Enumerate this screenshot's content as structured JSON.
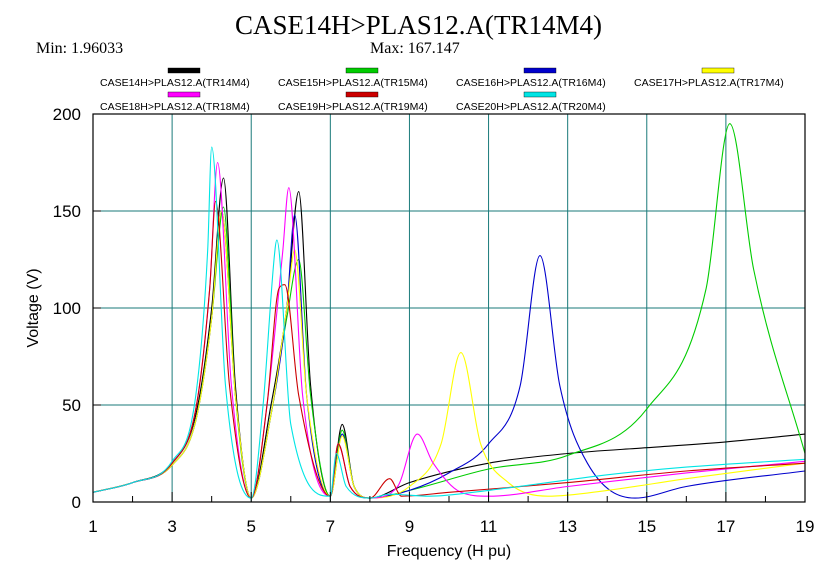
{
  "header": {
    "title": "CASE14H>PLAS12.A(TR14M4)",
    "min_text": "Min:  1.96033",
    "max_text": "Max:  167.147"
  },
  "chart_data": {
    "type": "line",
    "title": "CASE14H>PLAS12.A(TR14M4)",
    "xlabel": "Frequency (H pu)",
    "ylabel": "Voltage (V)",
    "xlim": [
      1,
      19
    ],
    "ylim": [
      0,
      200
    ],
    "xticks": [
      1,
      3,
      5,
      7,
      9,
      11,
      13,
      15,
      17,
      19
    ],
    "yticks": [
      0,
      50,
      100,
      150,
      200
    ],
    "grid": true,
    "legend_position": "top",
    "series": [
      {
        "name": "CASE14H>PLAS12.A(TR14M4)",
        "color": "#000000",
        "points": [
          [
            1,
            5
          ],
          [
            2,
            10
          ],
          [
            3,
            20
          ],
          [
            3.6,
            45
          ],
          [
            4.0,
            100
          ],
          [
            4.3,
            167
          ],
          [
            4.6,
            60
          ],
          [
            5,
            2
          ],
          [
            5.5,
            50
          ],
          [
            5.9,
            100
          ],
          [
            6.2,
            160
          ],
          [
            6.5,
            60
          ],
          [
            7,
            3
          ],
          [
            7.3,
            40
          ],
          [
            7.6,
            8
          ],
          [
            8,
            2
          ],
          [
            9,
            10
          ],
          [
            11,
            20
          ],
          [
            13,
            25
          ],
          [
            15,
            28
          ],
          [
            17,
            31
          ],
          [
            19,
            35
          ]
        ]
      },
      {
        "name": "CASE15H>PLAS12.A(TR15M4)",
        "color": "#00cc00",
        "points": [
          [
            1,
            5
          ],
          [
            2,
            10
          ],
          [
            3,
            19
          ],
          [
            3.6,
            42
          ],
          [
            4.0,
            95
          ],
          [
            4.3,
            152
          ],
          [
            4.6,
            55
          ],
          [
            5,
            2
          ],
          [
            5.5,
            45
          ],
          [
            5.9,
            95
          ],
          [
            6.2,
            125
          ],
          [
            6.5,
            55
          ],
          [
            7,
            3
          ],
          [
            7.3,
            37
          ],
          [
            7.6,
            8
          ],
          [
            8,
            2
          ],
          [
            9,
            6
          ],
          [
            11,
            17
          ],
          [
            13,
            24
          ],
          [
            15,
            48
          ],
          [
            16.5,
            110
          ],
          [
            17.1,
            195
          ],
          [
            17.7,
            120
          ],
          [
            19,
            25
          ]
        ]
      },
      {
        "name": "CASE16H>PLAS12.A(TR16M4)",
        "color": "#0000cc",
        "points": [
          [
            1,
            5
          ],
          [
            2,
            10
          ],
          [
            3,
            19
          ],
          [
            3.6,
            42
          ],
          [
            4.0,
            95
          ],
          [
            4.25,
            150
          ],
          [
            4.6,
            55
          ],
          [
            5,
            2
          ],
          [
            5.5,
            45
          ],
          [
            5.9,
            100
          ],
          [
            6.1,
            148
          ],
          [
            6.4,
            55
          ],
          [
            7,
            3
          ],
          [
            7.3,
            35
          ],
          [
            7.6,
            8
          ],
          [
            8,
            2
          ],
          [
            9,
            6
          ],
          [
            10,
            15
          ],
          [
            11,
            30
          ],
          [
            11.8,
            60
          ],
          [
            12.3,
            127
          ],
          [
            12.8,
            60
          ],
          [
            13.5,
            20
          ],
          [
            14.7,
            2
          ],
          [
            16,
            8
          ],
          [
            19,
            16
          ]
        ]
      },
      {
        "name": "CASE17H>PLAS12.A(TR17M4)",
        "color": "#ffff00",
        "points": [
          [
            1,
            5
          ],
          [
            2,
            10
          ],
          [
            3,
            19
          ],
          [
            3.6,
            42
          ],
          [
            4.0,
            95
          ],
          [
            4.25,
            150
          ],
          [
            4.6,
            55
          ],
          [
            5,
            2
          ],
          [
            5.5,
            45
          ],
          [
            5.9,
            100
          ],
          [
            6.1,
            130
          ],
          [
            6.4,
            55
          ],
          [
            7,
            3
          ],
          [
            7.3,
            34
          ],
          [
            7.6,
            8
          ],
          [
            8,
            2
          ],
          [
            9,
            8
          ],
          [
            9.8,
            30
          ],
          [
            10.3,
            77
          ],
          [
            10.8,
            30
          ],
          [
            11.5,
            10
          ],
          [
            12.5,
            3
          ],
          [
            14,
            6
          ],
          [
            16,
            12
          ],
          [
            19,
            20
          ]
        ]
      },
      {
        "name": "CASE18H>PLAS12.A(TR18M4)",
        "color": "#ff00ff",
        "points": [
          [
            1,
            5
          ],
          [
            2,
            10
          ],
          [
            3,
            20
          ],
          [
            3.6,
            48
          ],
          [
            3.95,
            110
          ],
          [
            4.15,
            175
          ],
          [
            4.5,
            60
          ],
          [
            5,
            2
          ],
          [
            5.4,
            50
          ],
          [
            5.8,
            130
          ],
          [
            5.95,
            162
          ],
          [
            6.3,
            55
          ],
          [
            7,
            3
          ],
          [
            7.2,
            30
          ],
          [
            7.5,
            8
          ],
          [
            8,
            2
          ],
          [
            8.7,
            8
          ],
          [
            9.2,
            35
          ],
          [
            9.6,
            20
          ],
          [
            10.3,
            5
          ],
          [
            11,
            3
          ],
          [
            13,
            8
          ],
          [
            16,
            15
          ],
          [
            19,
            21
          ]
        ]
      },
      {
        "name": "CASE19H>PLAS12.A(TR19M4)",
        "color": "#cc0000",
        "points": [
          [
            1,
            5
          ],
          [
            2,
            10
          ],
          [
            3,
            20
          ],
          [
            3.6,
            48
          ],
          [
            3.95,
            110
          ],
          [
            4.1,
            155
          ],
          [
            4.45,
            60
          ],
          [
            5,
            2
          ],
          [
            5.4,
            50
          ],
          [
            5.7,
            110
          ],
          [
            5.85,
            112
          ],
          [
            6.2,
            55
          ],
          [
            7,
            3
          ],
          [
            7.2,
            30
          ],
          [
            7.5,
            8
          ],
          [
            8,
            2
          ],
          [
            8.5,
            12
          ],
          [
            8.8,
            3
          ],
          [
            10,
            5
          ],
          [
            13,
            10
          ],
          [
            16,
            16
          ],
          [
            19,
            20
          ]
        ]
      },
      {
        "name": "CASE20H>PLAS12.A(TR20M4)",
        "color": "#00e5e5",
        "points": [
          [
            1,
            5
          ],
          [
            2,
            10
          ],
          [
            3,
            21
          ],
          [
            3.6,
            55
          ],
          [
            3.9,
            130
          ],
          [
            4.0,
            183
          ],
          [
            4.35,
            60
          ],
          [
            5,
            2
          ],
          [
            5.3,
            50
          ],
          [
            5.6,
            130
          ],
          [
            5.65,
            135
          ],
          [
            6.0,
            40
          ],
          [
            7,
            3
          ],
          [
            7.15,
            25
          ],
          [
            7.4,
            8
          ],
          [
            8,
            2
          ],
          [
            8.5,
            4
          ],
          [
            9.5,
            3
          ],
          [
            11,
            6
          ],
          [
            14,
            14
          ],
          [
            16,
            18
          ],
          [
            19,
            22
          ]
        ]
      }
    ]
  }
}
